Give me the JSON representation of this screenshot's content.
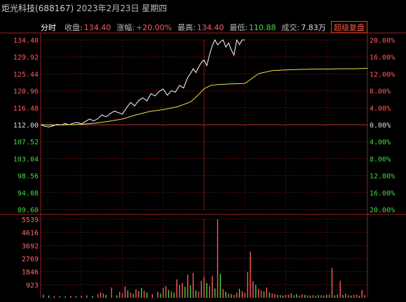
{
  "header": {
    "stock_name": "炬光科技",
    "stock_code": "(688167)",
    "date": "2023年2月23日",
    "weekday": "星期四"
  },
  "info_bar": {
    "mode_label": "分时",
    "close_label": "收盘:",
    "close_value": "134.40",
    "change_label": "涨幅:",
    "change_value": "+20.00%",
    "high_label": "最高:",
    "high_value": "134.40",
    "low_label": "最低:",
    "low_value": "110.88",
    "volume_label": "成交:",
    "volume_value": "7.83万",
    "replay_button": "超级复盘"
  },
  "colors": {
    "up": "#ff5b5b",
    "down": "#3fdc3f",
    "price_line": "#ffffff",
    "avg_line": "#e8e04a",
    "grid": "#8b1a1a",
    "frame": "#9b2020"
  },
  "chart_data": {
    "type": "line",
    "prev_close": 112.0,
    "ylim": [
      89.6,
      134.4
    ],
    "price_ticks": [
      "134.40",
      "129.92",
      "125.44",
      "120.96",
      "116.48",
      "112.00",
      "107.52",
      "103.04",
      "98.56",
      "94.08",
      "89.60"
    ],
    "pct_ticks": [
      "20.00%",
      "16.00%",
      "12.00%",
      "8.00%",
      "4.00%",
      "0.00%",
      "4.00%",
      "8.00%",
      "12.00%",
      "16.00%",
      "20.00%"
    ],
    "volume_ticks": [
      "5539",
      "4616",
      "3692",
      "2769",
      "1846",
      "923"
    ],
    "volume_max": 5539,
    "sessions_minutes": 240,
    "series": [
      {
        "name": "price",
        "x": [
          0,
          3,
          6,
          9,
          12,
          15,
          18,
          21,
          24,
          27,
          30,
          33,
          36,
          39,
          42,
          45,
          48,
          51,
          54,
          57,
          60,
          63,
          66,
          69,
          72,
          75,
          78,
          81,
          84,
          87,
          90,
          93,
          96,
          99,
          102,
          105,
          108,
          110,
          112,
          114,
          116,
          118,
          120,
          122,
          124,
          126,
          128,
          130,
          132,
          134,
          136,
          138,
          140,
          142,
          144,
          146,
          148,
          150
        ],
        "values": [
          112.0,
          111.6,
          111.4,
          111.7,
          112.1,
          111.9,
          112.3,
          112.0,
          112.4,
          112.6,
          112.2,
          112.9,
          113.5,
          113.0,
          113.6,
          114.6,
          114.1,
          114.9,
          115.6,
          115.2,
          114.8,
          116.4,
          117.9,
          117.0,
          118.4,
          119.1,
          118.3,
          120.2,
          119.6,
          120.8,
          121.4,
          119.8,
          121.0,
          120.6,
          122.4,
          121.7,
          124.5,
          125.5,
          126.8,
          125.8,
          127.2,
          128.4,
          129.1,
          127.6,
          130.5,
          132.8,
          134.4,
          133.1,
          133.9,
          134.4,
          132.5,
          133.6,
          131.8,
          130.4,
          134.4,
          133.2,
          134.4,
          134.4
        ]
      },
      {
        "name": "average",
        "x": [
          0,
          10,
          20,
          30,
          40,
          50,
          60,
          70,
          80,
          90,
          100,
          110,
          115,
          120,
          125,
          130,
          140,
          150,
          160,
          170,
          180,
          190,
          200,
          210,
          220,
          230,
          240
        ],
        "values": [
          112.0,
          111.9,
          112.0,
          112.1,
          112.4,
          112.9,
          113.5,
          114.6,
          115.5,
          116.0,
          116.7,
          118.0,
          119.6,
          121.5,
          122.4,
          122.6,
          122.8,
          122.9,
          125.5,
          126.3,
          126.5,
          126.6,
          126.7,
          126.7,
          126.8,
          126.8,
          126.9
        ]
      }
    ],
    "volume": {
      "x": [
        2,
        6,
        10,
        14,
        18,
        22,
        26,
        30,
        34,
        38,
        42,
        44,
        46,
        48,
        52,
        56,
        58,
        60,
        62,
        64,
        66,
        68,
        70,
        72,
        74,
        76,
        78,
        82,
        86,
        88,
        90,
        92,
        94,
        96,
        98,
        100,
        102,
        104,
        106,
        108,
        110,
        112,
        114,
        116,
        118,
        120,
        122,
        124,
        126,
        128,
        130,
        132,
        134,
        136,
        138,
        140,
        142,
        144,
        146,
        148,
        150,
        152,
        154,
        156,
        158,
        160,
        162,
        164,
        166,
        168,
        170,
        172,
        174,
        176,
        178,
        180,
        182,
        184,
        186,
        188,
        190,
        192,
        194,
        196,
        198,
        200,
        202,
        204,
        206,
        208,
        210,
        212,
        214,
        216,
        218,
        220,
        222,
        224,
        226,
        228,
        230,
        232,
        234,
        236,
        238
      ],
      "values": [
        220,
        160,
        120,
        110,
        90,
        140,
        110,
        150,
        170,
        130,
        260,
        380,
        300,
        200,
        720,
        180,
        420,
        320,
        800,
        520,
        360,
        280,
        600,
        480,
        700,
        500,
        380,
        260,
        420,
        300,
        720,
        820,
        560,
        460,
        380,
        1300,
        900,
        1040,
        780,
        1620,
        880,
        1760,
        520,
        440,
        1200,
        1460,
        1040,
        820,
        1540,
        660,
        5539,
        1700,
        620,
        420,
        300,
        260,
        200,
        360,
        640,
        460,
        340,
        1820,
        3260,
        1180,
        920,
        620,
        520,
        440,
        720,
        380,
        300,
        260,
        220,
        200,
        160,
        200,
        220,
        300,
        180,
        260,
        160,
        240,
        200,
        180,
        160,
        180,
        140,
        200,
        180,
        160,
        200,
        220,
        2100,
        180,
        240,
        1200,
        200,
        300,
        180,
        160,
        200,
        220,
        140,
        560,
        200
      ],
      "up": [
        true,
        false,
        true,
        true,
        false,
        true,
        false,
        true,
        true,
        false,
        true,
        true,
        true,
        false,
        true,
        false,
        true,
        true,
        true,
        false,
        true,
        false,
        true,
        true,
        false,
        true,
        false,
        true,
        true,
        false,
        true,
        true,
        false,
        true,
        false,
        true,
        true,
        true,
        false,
        true,
        false,
        true,
        false,
        true,
        true,
        true,
        false,
        true,
        true,
        false,
        true,
        false,
        true,
        false,
        true,
        false,
        true,
        true,
        false,
        true,
        true,
        true,
        true,
        true,
        false,
        true,
        true,
        false,
        true,
        false,
        true,
        true,
        false,
        true,
        false,
        true,
        true,
        false,
        true,
        false,
        true,
        true,
        false,
        true,
        false,
        true,
        true,
        false,
        true,
        true,
        false,
        true,
        true,
        false,
        true,
        true,
        false,
        true,
        true,
        false,
        true,
        true,
        false,
        true,
        true
      ]
    }
  }
}
